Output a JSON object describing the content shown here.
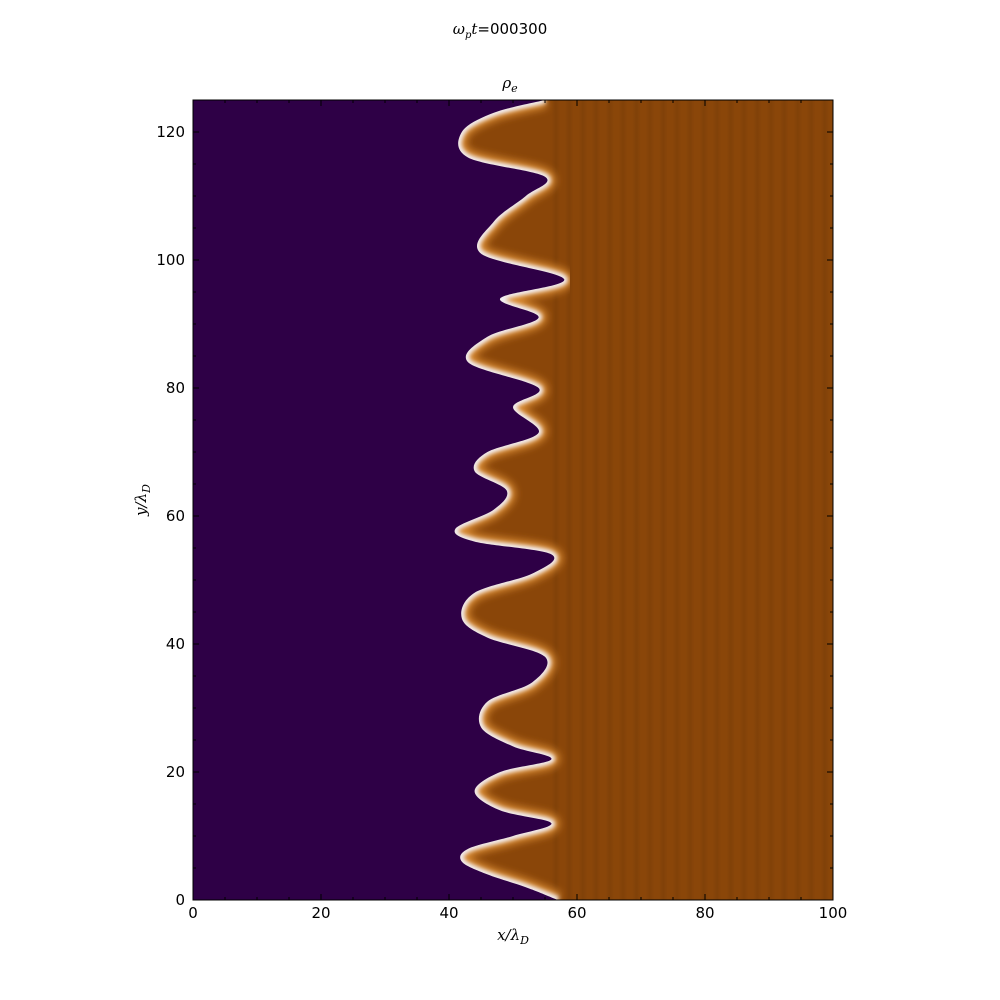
{
  "figure": {
    "suptitle_math": "ω",
    "suptitle_sub": "p",
    "suptitle_math2": "t",
    "suptitle_value": "=000300"
  },
  "chart_data": {
    "type": "heatmap",
    "title_math": "ρ",
    "title_sub": "e",
    "xlabel_math": "x/λ",
    "xlabel_sub": "D",
    "ylabel_math": "y/λ",
    "ylabel_sub": "D",
    "xlim": [
      0,
      100
    ],
    "ylim": [
      0,
      125
    ],
    "x_ticks": [
      0,
      20,
      40,
      60,
      80,
      100
    ],
    "y_ticks": [
      0,
      20,
      40,
      60,
      80,
      100,
      120
    ],
    "x_tick_labels": [
      "0",
      "20",
      "40",
      "60",
      "80",
      "100"
    ],
    "y_tick_labels": [
      "0",
      "20",
      "40",
      "60",
      "80",
      "100",
      "120"
    ],
    "grid": false,
    "colors": {
      "low": "#2e0046",
      "high": "#8a4609",
      "interface": "#f2f0f6",
      "edge": "#d98a30"
    },
    "interface_profile": [
      {
        "y": 0,
        "x": 57
      },
      {
        "y": 2,
        "x": 52
      },
      {
        "y": 4,
        "x": 46
      },
      {
        "y": 6,
        "x": 42
      },
      {
        "y": 8,
        "x": 43
      },
      {
        "y": 10,
        "x": 50
      },
      {
        "y": 12,
        "x": 56
      },
      {
        "y": 14,
        "x": 48
      },
      {
        "y": 17,
        "x": 44
      },
      {
        "y": 20,
        "x": 48
      },
      {
        "y": 22,
        "x": 56
      },
      {
        "y": 24,
        "x": 50
      },
      {
        "y": 27,
        "x": 45
      },
      {
        "y": 31,
        "x": 46
      },
      {
        "y": 34,
        "x": 53
      },
      {
        "y": 38,
        "x": 55
      },
      {
        "y": 41,
        "x": 46
      },
      {
        "y": 44,
        "x": 42
      },
      {
        "y": 48,
        "x": 44
      },
      {
        "y": 51,
        "x": 53
      },
      {
        "y": 54,
        "x": 56
      },
      {
        "y": 56,
        "x": 44
      },
      {
        "y": 58,
        "x": 41
      },
      {
        "y": 61,
        "x": 47
      },
      {
        "y": 64,
        "x": 49
      },
      {
        "y": 67,
        "x": 44
      },
      {
        "y": 70,
        "x": 46
      },
      {
        "y": 73,
        "x": 54
      },
      {
        "y": 77,
        "x": 50
      },
      {
        "y": 80,
        "x": 54
      },
      {
        "y": 84,
        "x": 43
      },
      {
        "y": 88,
        "x": 46
      },
      {
        "y": 91,
        "x": 54
      },
      {
        "y": 94,
        "x": 48
      },
      {
        "y": 97,
        "x": 58
      },
      {
        "y": 101,
        "x": 45
      },
      {
        "y": 106,
        "x": 47
      },
      {
        "y": 110,
        "x": 52
      },
      {
        "y": 113,
        "x": 55
      },
      {
        "y": 116,
        "x": 43
      },
      {
        "y": 120,
        "x": 42
      },
      {
        "y": 123,
        "x": 47
      },
      {
        "y": 125,
        "x": 55
      }
    ]
  }
}
